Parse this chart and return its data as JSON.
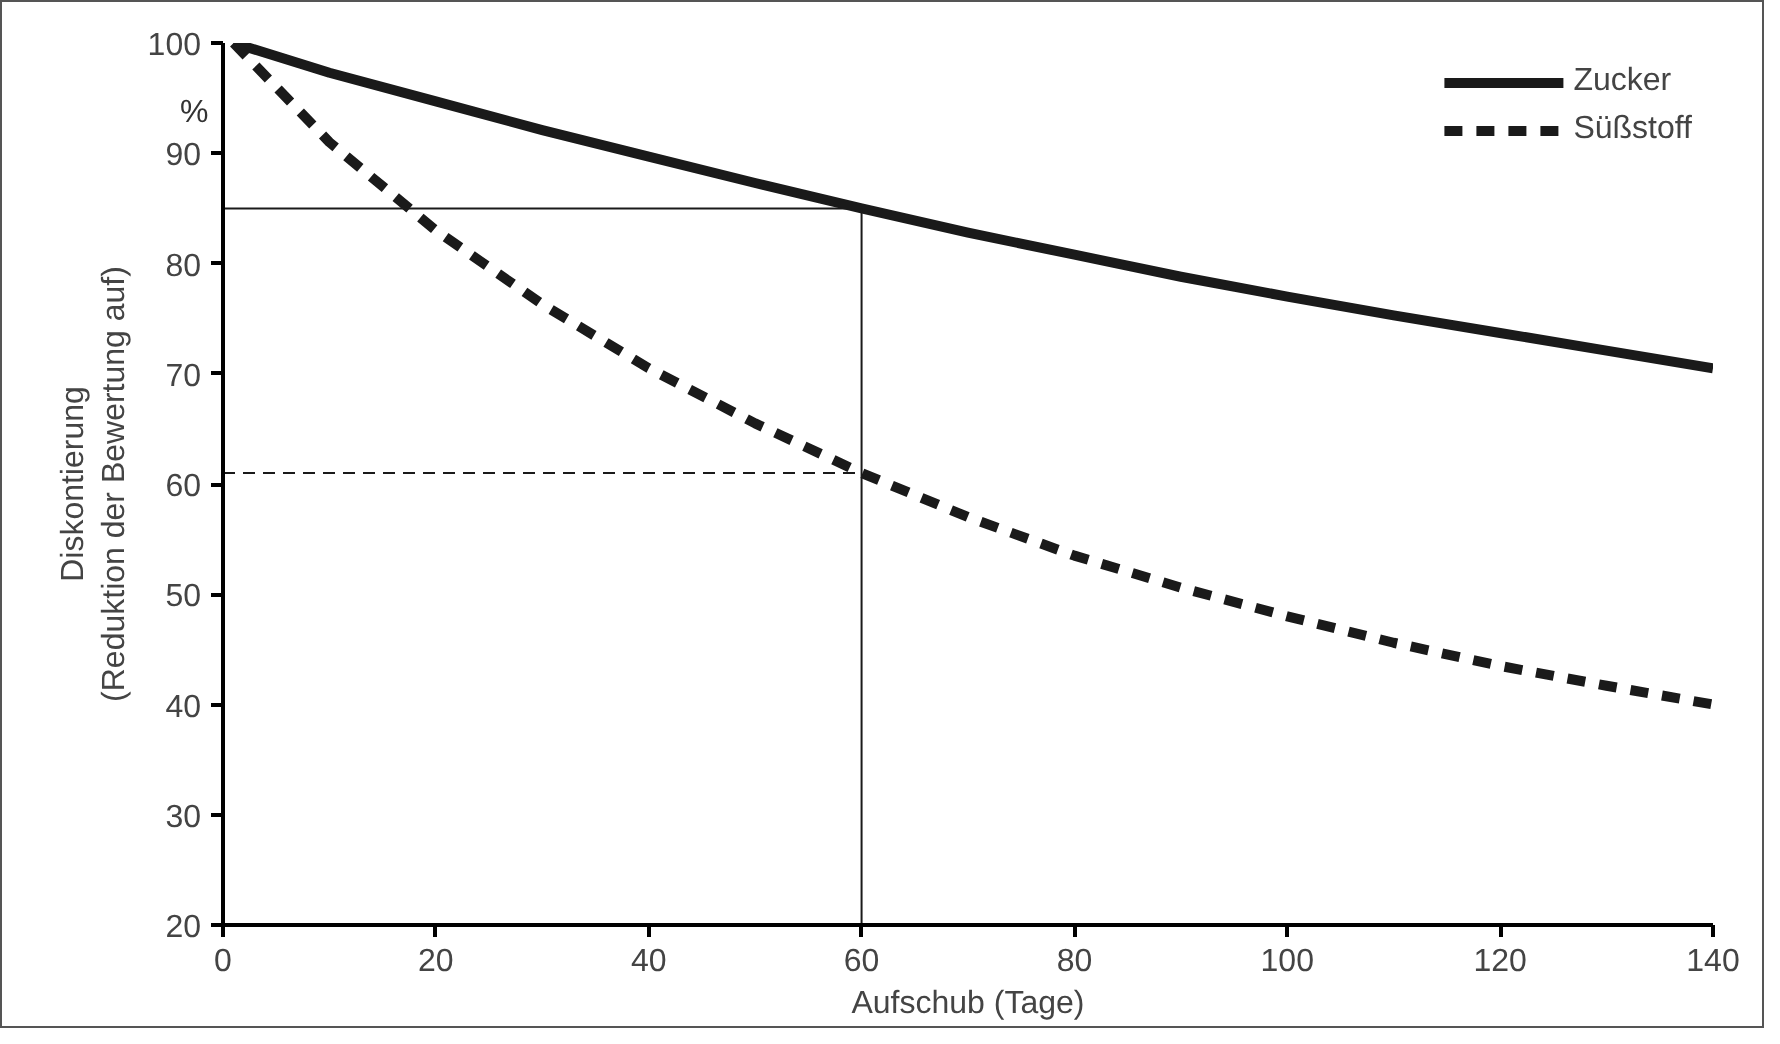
{
  "chart_data": {
    "type": "line",
    "xlabel": "Aufschub (Tage)",
    "ylabel": "Diskontierung\n(Reduktion der Bewertung auf)",
    "annotations": [
      "%"
    ],
    "xlim": [
      0,
      140
    ],
    "ylim": [
      20,
      100
    ],
    "xticks": [
      0,
      20,
      40,
      60,
      80,
      100,
      120,
      140
    ],
    "yticks": [
      20,
      30,
      40,
      50,
      60,
      70,
      80,
      90,
      100
    ],
    "grid": false,
    "legend": "top right",
    "marker": "none",
    "series": [
      {
        "name": "Zucker",
        "color": "#1a1a1a",
        "line_style": "solid",
        "x": [
          1,
          10,
          20,
          30,
          40,
          50,
          60,
          70,
          80,
          90,
          100,
          110,
          120,
          130,
          140
        ],
        "values": [
          100,
          97.3,
          94.7,
          92.1,
          89.7,
          87.3,
          85,
          82.8,
          80.8,
          78.8,
          77,
          75.3,
          73.7,
          72.1,
          70.5
        ]
      },
      {
        "name": "Süßstoff",
        "color": "#1a1a1a",
        "line_style": "dotted",
        "x": [
          1,
          10,
          20,
          30,
          40,
          50,
          60,
          70,
          80,
          90,
          100,
          110,
          120,
          130,
          140
        ],
        "values": [
          100,
          91,
          83,
          76.3,
          70.5,
          65.5,
          61,
          57,
          53.5,
          50.6,
          48,
          45.6,
          43.5,
          41.7,
          40
        ]
      },
      {
        "color": "#1a1a1a",
        "line_style": "solid",
        "x": [
          0,
          60
        ],
        "values": [
          85,
          85
        ]
      },
      {
        "color": "#1a1a1a",
        "line_style": "solid",
        "x": [
          60,
          60
        ],
        "values": [
          20,
          85
        ]
      },
      {
        "color": "#1a1a1a",
        "line_style": "dashed",
        "x": [
          0,
          60
        ],
        "values": [
          61,
          61
        ]
      }
    ]
  }
}
